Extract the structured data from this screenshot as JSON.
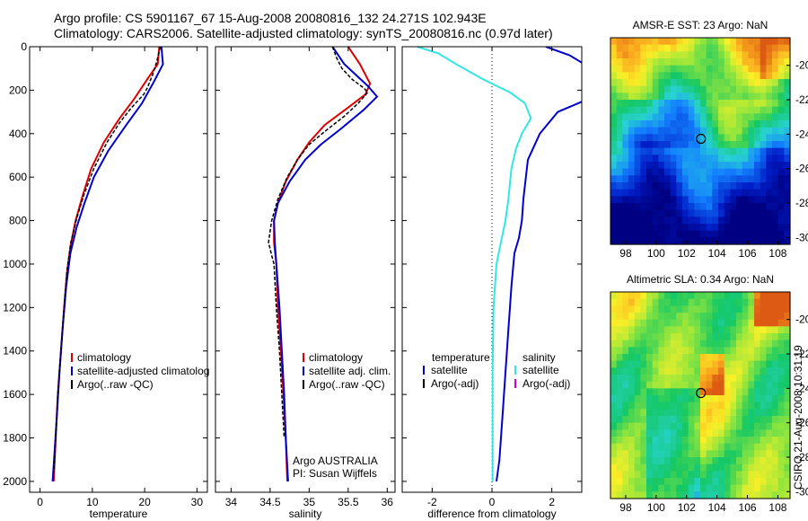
{
  "header": {
    "line1": "Argo profile: CS 5901167_67 15-Aug-2008 20080816_132 24.271S 102.943E",
    "line2": "Climatology: CARS2006. Satellite-adjusted climatology: synTS_20080816.nc (0.97d later)"
  },
  "side_label": "CSIRO 21-Aug-2008 10:31:19",
  "colors": {
    "climatology": "#dd0000",
    "satellite": "#0000cc",
    "argo": "#000000",
    "salinity_sat": "#33e6e6",
    "salinity_argo": "#cc00cc"
  },
  "chart_data": [
    {
      "id": "temperature",
      "type": "line",
      "xlabel": "temperature",
      "ylabel": "",
      "xlim": [
        -2,
        32
      ],
      "ylim": [
        2050,
        0
      ],
      "x_ticks": [
        0,
        10,
        20,
        30
      ],
      "y_ticks": [
        0,
        200,
        400,
        600,
        800,
        1000,
        1200,
        1400,
        1600,
        1800,
        2000
      ],
      "legend": [
        "climatology",
        "satellite-adjusted climatolog",
        "Argo(..raw -QC)"
      ],
      "series": [
        {
          "name": "climatology",
          "color": "#dd0000",
          "points": [
            [
              22.8,
              0
            ],
            [
              22.5,
              80
            ],
            [
              20.5,
              150
            ],
            [
              18,
              240
            ],
            [
              15.2,
              330
            ],
            [
              12.2,
              440
            ],
            [
              9.8,
              560
            ],
            [
              8.2,
              680
            ],
            [
              6.8,
              800
            ],
            [
              5.8,
              920
            ],
            [
              5.1,
              1050
            ],
            [
              4.6,
              1200
            ],
            [
              4.0,
              1400
            ],
            [
              3.4,
              1600
            ],
            [
              3.0,
              1800
            ],
            [
              2.6,
              2000
            ]
          ]
        },
        {
          "name": "satellite-adjusted climatolog",
          "color": "#0000cc",
          "points": [
            [
              23.2,
              0
            ],
            [
              23.5,
              80
            ],
            [
              21.8,
              160
            ],
            [
              19.5,
              260
            ],
            [
              16.5,
              360
            ],
            [
              13,
              480
            ],
            [
              10.3,
              600
            ],
            [
              8.5,
              720
            ],
            [
              7.0,
              830
            ],
            [
              5.8,
              950
            ],
            [
              5.0,
              1100
            ],
            [
              4.3,
              1300
            ],
            [
              3.7,
              1500
            ],
            [
              3.2,
              1700
            ],
            [
              2.8,
              1850
            ],
            [
              2.4,
              2000
            ]
          ]
        },
        {
          "name": "Argo(..raw -QC)",
          "color": "#000000",
          "dash": "4,2",
          "points": [
            [
              23.0,
              0
            ],
            [
              22.3,
              70
            ],
            [
              21.5,
              130
            ],
            [
              20.5,
              190
            ],
            [
              19.8,
              220
            ],
            [
              17.5,
              280
            ],
            [
              15.2,
              350
            ],
            [
              12.8,
              440
            ],
            [
              10.3,
              560
            ],
            [
              8.4,
              680
            ],
            [
              7.0,
              790
            ],
            [
              5.9,
              900
            ],
            [
              5.2,
              1020
            ],
            [
              4.6,
              1200
            ],
            [
              4.0,
              1400
            ],
            [
              3.4,
              1600
            ],
            [
              3.0,
              1800
            ],
            [
              2.6,
              1960
            ]
          ]
        }
      ]
    },
    {
      "id": "salinity",
      "type": "line",
      "xlabel": "salinity",
      "ylabel": "",
      "xlim": [
        33.8,
        36.1
      ],
      "ylim": [
        2050,
        0
      ],
      "x_ticks": [
        34,
        34.5,
        35,
        35.5,
        36
      ],
      "legend": [
        "climatology",
        "satellite adj. clim.",
        "Argo(..raw -QC)"
      ],
      "annotation": [
        "Argo AUSTRALIA",
        "PI: Susan Wijffels"
      ],
      "series": [
        {
          "name": "climatology",
          "color": "#dd0000",
          "points": [
            [
              35.5,
              0
            ],
            [
              35.65,
              80
            ],
            [
              35.78,
              170
            ],
            [
              35.72,
              220
            ],
            [
              35.5,
              280
            ],
            [
              35.2,
              360
            ],
            [
              35.0,
              440
            ],
            [
              34.85,
              520
            ],
            [
              34.7,
              620
            ],
            [
              34.6,
              720
            ],
            [
              34.55,
              800
            ],
            [
              34.55,
              900
            ],
            [
              34.58,
              1000
            ],
            [
              34.6,
              1200
            ],
            [
              34.64,
              1400
            ],
            [
              34.67,
              1600
            ],
            [
              34.7,
              1800
            ],
            [
              34.72,
              2000
            ]
          ]
        },
        {
          "name": "satellite adj. clim.",
          "color": "#0000cc",
          "points": [
            [
              35.3,
              0
            ],
            [
              35.45,
              80
            ],
            [
              35.75,
              180
            ],
            [
              35.87,
              230
            ],
            [
              35.7,
              290
            ],
            [
              35.4,
              380
            ],
            [
              35.15,
              450
            ],
            [
              34.95,
              520
            ],
            [
              34.75,
              620
            ],
            [
              34.6,
              720
            ],
            [
              34.55,
              800
            ],
            [
              34.56,
              900
            ],
            [
              34.58,
              1000
            ],
            [
              34.62,
              1200
            ],
            [
              34.65,
              1400
            ],
            [
              34.68,
              1600
            ],
            [
              34.7,
              1800
            ],
            [
              34.73,
              2000
            ]
          ]
        },
        {
          "name": "Argo(..raw -QC)",
          "color": "#000000",
          "dash": "4,2",
          "points": [
            [
              35.3,
              0
            ],
            [
              35.35,
              50
            ],
            [
              35.42,
              100
            ],
            [
              35.55,
              150
            ],
            [
              35.7,
              190
            ],
            [
              35.75,
              210
            ],
            [
              35.63,
              260
            ],
            [
              35.45,
              320
            ],
            [
              35.2,
              390
            ],
            [
              35.0,
              450
            ],
            [
              34.85,
              520
            ],
            [
              34.72,
              600
            ],
            [
              34.6,
              700
            ],
            [
              34.52,
              800
            ],
            [
              34.48,
              900
            ],
            [
              34.52,
              960
            ],
            [
              34.55,
              1000
            ],
            [
              34.58,
              1200
            ],
            [
              34.62,
              1400
            ],
            [
              34.65,
              1600
            ],
            [
              34.68,
              1800
            ]
          ]
        }
      ]
    },
    {
      "id": "difference",
      "type": "line",
      "xlabel": "difference from climatology",
      "ylabel": "",
      "xlim": [
        -3,
        3
      ],
      "ylim": [
        2050,
        0
      ],
      "x_ticks": [
        -2,
        0,
        2
      ],
      "legend_left_title": "temperature",
      "legend_right_title": "salinity",
      "legend": [
        "satellite",
        "Argo(-adj)",
        "satellite",
        "Argo(-adj)"
      ],
      "series": [
        {
          "name": "satellite",
          "color": "#0000cc",
          "points": [
            [
              1.8,
              0
            ],
            [
              2.6,
              40
            ],
            [
              3.2,
              90
            ],
            [
              3.5,
              160
            ],
            [
              3.4,
              230
            ],
            [
              2.2,
              300
            ],
            [
              1.6,
              400
            ],
            [
              1.2,
              520
            ],
            [
              1.05,
              700
            ],
            [
              1.0,
              800
            ],
            [
              0.9,
              880
            ],
            [
              0.75,
              950
            ],
            [
              0.65,
              1100
            ],
            [
              0.55,
              1300
            ],
            [
              0.45,
              1500
            ],
            [
              0.35,
              1700
            ],
            [
              0.25,
              1900
            ],
            [
              0.15,
              2000
            ]
          ]
        },
        {
          "name": "salinity satellite",
          "color": "#33e6e6",
          "points": [
            [
              -2.5,
              0
            ],
            [
              -1.8,
              30
            ],
            [
              -1.2,
              80
            ],
            [
              -0.3,
              150
            ],
            [
              0.6,
              210
            ],
            [
              1.1,
              260
            ],
            [
              1.3,
              330
            ],
            [
              1.0,
              400
            ],
            [
              0.8,
              470
            ],
            [
              0.65,
              560
            ],
            [
              0.55,
              700
            ],
            [
              0.45,
              800
            ],
            [
              0.3,
              900
            ],
            [
              0.15,
              1000
            ],
            [
              0.05,
              1200
            ],
            [
              0.02,
              1500
            ],
            [
              0.02,
              1800
            ],
            [
              0.02,
              2000
            ]
          ]
        }
      ]
    },
    {
      "id": "sst_map",
      "type": "heatmap",
      "title": "AMSR-E SST: 23 Argo: NaN",
      "x_ticks": [
        98,
        100,
        102,
        104,
        106,
        108
      ],
      "y_ticks": [
        -20,
        -22,
        -24,
        -26,
        -28,
        -30
      ],
      "xlim": [
        97.0,
        108.8
      ],
      "ylim": [
        -30.4,
        -18.4
      ],
      "marker": [
        102.943,
        -24.271
      ]
    },
    {
      "id": "sla_map",
      "type": "heatmap",
      "title": "Altimetric SLA: 0.34 Argo: NaN",
      "x_ticks": [
        98,
        100,
        102,
        104,
        106,
        108
      ],
      "y_ticks": [
        -20,
        -22,
        -24,
        -26,
        -28,
        -30
      ],
      "xlim": [
        97.0,
        108.8
      ],
      "ylim": [
        -30.4,
        -18.4
      ],
      "marker": [
        102.943,
        -24.271
      ]
    }
  ]
}
